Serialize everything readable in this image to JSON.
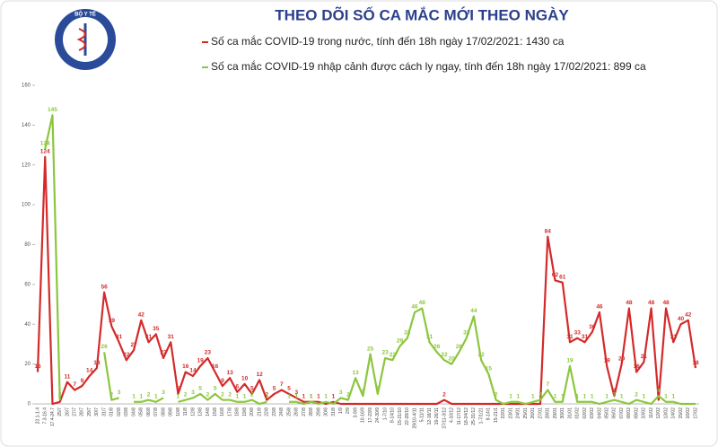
{
  "logo_text": "BỘ Y TẾ",
  "chart_data": {
    "type": "line",
    "title": "THEO DÕI SỐ CA MẮC MỚI THEO NGÀY",
    "categories": [
      "23.1-1.4",
      "7.3-16.4",
      "17.4-24.7",
      "25/7",
      "26/7",
      "27/7",
      "28/7",
      "29/7",
      "30/7",
      "31/7",
      "01/8",
      "02/8",
      "03/8",
      "04/8",
      "05/8",
      "06/8",
      "07/8",
      "08/8",
      "09/8",
      "10/8",
      "11/8",
      "12/8",
      "13/8",
      "14/8",
      "15/8",
      "16/8",
      "17/8",
      "18/8",
      "19/8",
      "20/8",
      "21/8",
      "22/8",
      "23/8",
      "24/8",
      "25/8",
      "26/8",
      "27/8",
      "28/8",
      "29/8",
      "30/8",
      "31/8",
      "1/9",
      "2/9",
      "3-9/9",
      "10-16/9",
      "17-23/9",
      "24-30/9",
      "1-7/10",
      "8-14/10",
      "15-21/10",
      "22-28/10",
      "29/10-4/11",
      "5-11/11",
      "12-18/11",
      "19-26/11",
      "27/11-3/12",
      "4-10/12",
      "11-17/12",
      "18-24/12",
      "25-31/12",
      "1-7/1/21",
      "8-14/1",
      "15-21/1",
      "22/01",
      "23/01",
      "24/01",
      "25/01",
      "26/01",
      "27/01",
      "28/01",
      "29/01",
      "30/01",
      "31/01",
      "01/02",
      "02/02",
      "03/02",
      "04/02",
      "05/02",
      "06/02",
      "07/02",
      "08/02",
      "09/02",
      "10/02",
      "11/02",
      "12/02",
      "13/02",
      "14/02",
      "15/02",
      "16/02",
      "17/02"
    ],
    "series": [
      {
        "name": "Số ca mắc COVID-19 trong nước, tính đến 18h ngày 17/02/2021: 1430 ca",
        "color": "#d42a2a",
        "values": [
          16,
          124,
          0,
          1,
          11,
          7,
          9,
          14,
          18,
          56,
          39,
          31,
          22,
          27,
          42,
          31,
          35,
          23,
          31,
          5,
          16,
          14,
          19,
          23,
          16,
          9,
          13,
          6,
          10,
          5,
          12,
          2,
          5,
          7,
          5,
          3,
          1,
          1,
          1,
          0,
          1,
          0,
          0,
          0,
          0,
          0,
          0,
          0,
          0,
          0,
          0,
          0,
          0,
          0,
          0,
          2,
          0,
          0,
          0,
          0,
          0,
          0,
          0,
          0,
          0,
          0,
          0,
          0,
          0,
          84,
          62,
          61,
          31,
          33,
          31,
          36,
          46,
          19,
          4,
          20,
          48,
          16,
          21,
          48,
          2,
          48,
          31,
          40,
          42,
          18
        ]
      },
      {
        "name": "Số ca mắc COVID-19 nhập cảnh được cách ly ngay, tính đến 18h ngày 17/02/2021: 899 ca",
        "color": "#8cc63e",
        "values": [
          null,
          128,
          145,
          2,
          null,
          null,
          null,
          null,
          null,
          26,
          2,
          3,
          null,
          1,
          1,
          2,
          1,
          3,
          null,
          1,
          2,
          3,
          5,
          2,
          5,
          2,
          2,
          1,
          1,
          2,
          0,
          1,
          null,
          null,
          1,
          1,
          0,
          1,
          0,
          1,
          0,
          3,
          2,
          13,
          4,
          25,
          5,
          23,
          22,
          29,
          33,
          46,
          48,
          31,
          26,
          22,
          20,
          26,
          33,
          44,
          22,
          15,
          2,
          0,
          1,
          1,
          0,
          1,
          2,
          7,
          1,
          1,
          19,
          1,
          1,
          1,
          0,
          1,
          2,
          1,
          0,
          2,
          1,
          0,
          4,
          1,
          1,
          0,
          0,
          0
        ]
      }
    ],
    "ylim": [
      0,
      160
    ],
    "yticks": [
      0,
      20,
      40,
      60,
      80,
      100,
      120,
      140,
      160
    ],
    "grid": false
  }
}
